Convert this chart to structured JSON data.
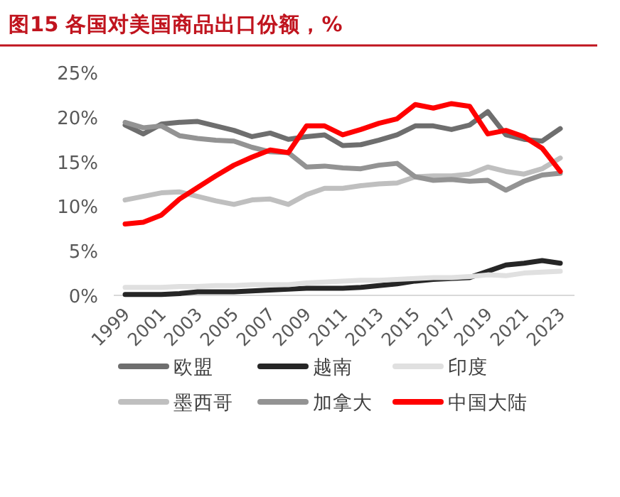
{
  "chart_data": {
    "type": "line",
    "title": "图15  各国对美国商品出口份额，%",
    "categories": [
      "1999",
      null,
      "2001",
      null,
      "2003",
      null,
      "2005",
      null,
      "2007",
      null,
      "2009",
      null,
      "2011",
      null,
      "2013",
      null,
      "2015",
      null,
      "2017",
      null,
      "2019",
      null,
      "2021",
      null,
      "2023"
    ],
    "series": [
      {
        "name": "欧盟",
        "color": "#6e6e6e",
        "values": [
          19.1,
          18.1,
          19.2,
          19.4,
          19.5,
          19.0,
          18.5,
          17.8,
          18.2,
          17.5,
          17.8,
          18.0,
          16.8,
          16.9,
          17.4,
          18.0,
          19.0,
          19.0,
          18.6,
          19.1,
          20.6,
          18.0,
          17.5,
          17.3,
          18.7
        ]
      },
      {
        "name": "越南",
        "color": "#262626",
        "values": [
          0.1,
          0.1,
          0.1,
          0.2,
          0.4,
          0.4,
          0.4,
          0.5,
          0.6,
          0.7,
          0.8,
          0.8,
          0.8,
          0.9,
          1.1,
          1.3,
          1.6,
          1.8,
          1.9,
          2.0,
          2.7,
          3.4,
          3.6,
          3.9,
          3.6
        ]
      },
      {
        "name": "印度",
        "color": "#e0e0e0",
        "values": [
          0.9,
          0.9,
          0.9,
          1.0,
          1.0,
          1.1,
          1.1,
          1.2,
          1.2,
          1.2,
          1.4,
          1.5,
          1.6,
          1.7,
          1.7,
          1.8,
          1.9,
          2.0,
          2.0,
          2.1,
          2.3,
          2.2,
          2.5,
          2.6,
          2.7
        ]
      },
      {
        "name": "墨西哥",
        "color": "#bfbfbf",
        "values": [
          10.7,
          11.1,
          11.5,
          11.6,
          11.1,
          10.6,
          10.2,
          10.7,
          10.8,
          10.2,
          11.3,
          12.0,
          12.0,
          12.3,
          12.5,
          12.6,
          13.3,
          13.4,
          13.4,
          13.6,
          14.4,
          13.9,
          13.6,
          14.2,
          15.4
        ]
      },
      {
        "name": "加拿大",
        "color": "#939393",
        "values": [
          19.4,
          18.8,
          19.0,
          17.9,
          17.6,
          17.4,
          17.3,
          16.6,
          16.1,
          16.0,
          14.4,
          14.5,
          14.3,
          14.2,
          14.6,
          14.8,
          13.3,
          12.9,
          13.0,
          12.8,
          12.9,
          11.8,
          12.8,
          13.5,
          13.7
        ]
      },
      {
        "name": "中国大陆",
        "color": "#ff0000",
        "values": [
          8.0,
          8.2,
          9.0,
          10.8,
          12.1,
          13.4,
          14.6,
          15.5,
          16.3,
          16.0,
          19.0,
          19.0,
          18.0,
          18.6,
          19.3,
          19.8,
          21.4,
          21.0,
          21.5,
          21.2,
          18.1,
          18.5,
          17.8,
          16.5,
          13.9
        ]
      }
    ],
    "ylim": [
      0,
      25
    ],
    "yticks": [
      {
        "value": 0,
        "label": "0%"
      },
      {
        "value": 5,
        "label": "5%"
      },
      {
        "value": 10,
        "label": "10%"
      },
      {
        "value": 15,
        "label": "15%"
      },
      {
        "value": 20,
        "label": "20%"
      },
      {
        "value": 25,
        "label": "25%"
      }
    ],
    "legend": "bottom"
  }
}
